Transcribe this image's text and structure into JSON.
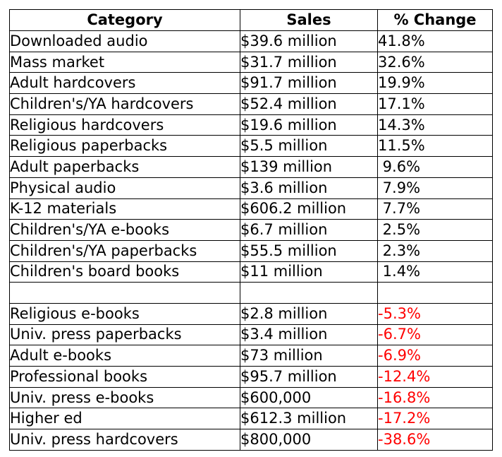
{
  "chart_data": {
    "type": "table",
    "columns": [
      "Category",
      "Sales",
      "% Change"
    ],
    "negative_color": "#ff0000",
    "rows": [
      {
        "category": "Downloaded audio",
        "sales": "$39.6 million",
        "change": "41.8%",
        "negative": false
      },
      {
        "category": "Mass market",
        "sales": "$31.7 million",
        "change": "32.6%",
        "negative": false
      },
      {
        "category": "Adult hardcovers",
        "sales": "$91.7 million",
        "change": "19.9%",
        "negative": false
      },
      {
        "category": "Children's/YA hardcovers",
        "sales": "$52.4 million",
        "change": "17.1%",
        "negative": false
      },
      {
        "category": "Religious hardcovers",
        "sales": "$19.6 million",
        "change": "14.3%",
        "negative": false
      },
      {
        "category": "Religious paperbacks",
        "sales": "$5.5 million",
        "change": "11.5%",
        "negative": false
      },
      {
        "category": "Adult paperbacks",
        "sales": "$139 million",
        "change": " 9.6%",
        "negative": false
      },
      {
        "category": "Physical audio",
        "sales": "$3.6 million",
        "change": " 7.9%",
        "negative": false
      },
      {
        "category": "K-12 materials",
        "sales": "$606.2 million",
        "change": " 7.7%",
        "negative": false
      },
      {
        "category": "Children's/YA e-books",
        "sales": "$6.7 million",
        "change": " 2.5%",
        "negative": false
      },
      {
        "category": "Children's/YA paperbacks",
        "sales": "$55.5 million",
        "change": " 2.3%",
        "negative": false
      },
      {
        "category": "Children's board books",
        "sales": "$11 million",
        "change": " 1.4%",
        "negative": false
      },
      {
        "category": "",
        "sales": "",
        "change": "",
        "negative": false
      },
      {
        "category": "Religious e-books",
        "sales": "$2.8 million",
        "change": "-5.3%",
        "negative": true
      },
      {
        "category": "Univ. press paperbacks",
        "sales": "$3.4 million",
        "change": "-6.7%",
        "negative": true
      },
      {
        "category": "Adult e-books",
        "sales": "$73 million",
        "change": "-6.9%",
        "negative": true
      },
      {
        "category": "Professional books",
        "sales": "$95.7 million",
        "change": "-12.4%",
        "negative": true
      },
      {
        "category": "Univ. press e-books",
        "sales": "$600,000",
        "change": "-16.8%",
        "negative": true
      },
      {
        "category": "Higher ed",
        "sales": "$612.3 million",
        "change": "-17.2%",
        "negative": true
      },
      {
        "category": "Univ. press hardcovers",
        "sales": "$800,000",
        "change": "-38.6%",
        "negative": true
      }
    ]
  }
}
